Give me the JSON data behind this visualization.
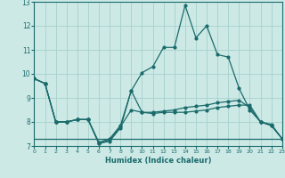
{
  "xlabel": "Humidex (Indice chaleur)",
  "xlim": [
    0,
    23
  ],
  "ylim": [
    7,
    13
  ],
  "yticks": [
    7,
    8,
    9,
    10,
    11,
    12,
    13
  ],
  "xticks": [
    0,
    1,
    2,
    3,
    4,
    5,
    6,
    7,
    8,
    9,
    10,
    11,
    12,
    13,
    14,
    15,
    16,
    17,
    18,
    19,
    20,
    21,
    22,
    23
  ],
  "background_color": "#cce9e6",
  "grid_color": "#a8d0cc",
  "line_color": "#1a6b6b",
  "line1_x": [
    0,
    1,
    2,
    3,
    4,
    5,
    6,
    7,
    8,
    9,
    10,
    11,
    12,
    13,
    14,
    15,
    16,
    17,
    18,
    19,
    20,
    21,
    22,
    23
  ],
  "line1_y": [
    9.8,
    9.6,
    8.0,
    8.0,
    8.1,
    8.1,
    7.1,
    7.2,
    7.75,
    9.3,
    10.05,
    10.3,
    11.1,
    11.1,
    12.85,
    11.5,
    12.0,
    10.8,
    10.7,
    9.4,
    8.5,
    8.0,
    7.85,
    7.3
  ],
  "line2_x": [
    0,
    1,
    2,
    3,
    4,
    5,
    6,
    7,
    8,
    9,
    10,
    11,
    12,
    13,
    14,
    15,
    16,
    17,
    18,
    19,
    20,
    21,
    22,
    23
  ],
  "line2_y": [
    9.8,
    9.6,
    8.0,
    8.0,
    8.1,
    8.1,
    7.1,
    7.25,
    7.8,
    8.5,
    8.4,
    8.4,
    8.45,
    8.5,
    8.6,
    8.65,
    8.7,
    8.8,
    8.85,
    8.9,
    8.6,
    8.0,
    7.85,
    7.3
  ],
  "line3_x": [
    0,
    1,
    2,
    3,
    4,
    5,
    6,
    7,
    8,
    9,
    10,
    11,
    12,
    13,
    14,
    15,
    16,
    17,
    18,
    19,
    20,
    21,
    22,
    23
  ],
  "line3_y": [
    9.8,
    9.6,
    8.0,
    8.0,
    8.1,
    8.1,
    7.15,
    7.3,
    7.85,
    9.3,
    8.4,
    8.35,
    8.4,
    8.4,
    8.4,
    8.45,
    8.5,
    8.6,
    8.65,
    8.7,
    8.7,
    8.0,
    7.9,
    7.3
  ],
  "line4_x": [
    0,
    23
  ],
  "line4_y": [
    7.3,
    7.3
  ]
}
